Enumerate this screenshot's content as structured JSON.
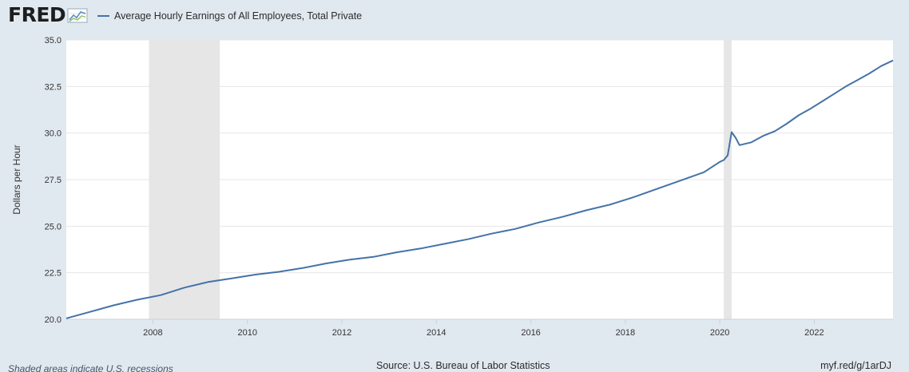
{
  "header": {
    "logo_text": "FRED",
    "legend_label": "Average Hourly Earnings of All Employees, Total Private"
  },
  "footer": {
    "note": "Shaded areas indicate U.S. recessions",
    "source": "Source: U.S. Bureau of Labor Statistics",
    "link": "myf.red/g/1arDJ"
  },
  "colors": {
    "line": "#4572a7",
    "recession": "#e6e6e6",
    "plot_background": "#ffffff",
    "page_background": "#e1e9f0"
  },
  "chart_data": {
    "type": "line",
    "title": "",
    "xlabel": "",
    "ylabel": "Dollars per Hour",
    "xlim": [
      "2006-03",
      "2023-09"
    ],
    "ylim": [
      20.0,
      35.0
    ],
    "grid": true,
    "legend_position": "top-left",
    "y_ticks": [
      "20.0",
      "22.5",
      "25.0",
      "27.5",
      "30.0",
      "32.5",
      "35.0"
    ],
    "x_ticks": [
      "2008",
      "2010",
      "2012",
      "2014",
      "2016",
      "2018",
      "2020",
      "2022"
    ],
    "recessions": [
      {
        "start": "2007-12",
        "end": "2009-06"
      },
      {
        "start": "2020-02",
        "end": "2020-04"
      }
    ],
    "series": [
      {
        "name": "Average Hourly Earnings of All Employees, Total Private",
        "x": [
          "2006-03",
          "2006-09",
          "2007-03",
          "2007-09",
          "2008-03",
          "2008-09",
          "2009-03",
          "2009-09",
          "2010-03",
          "2010-09",
          "2011-03",
          "2011-09",
          "2012-03",
          "2012-09",
          "2013-03",
          "2013-09",
          "2014-03",
          "2014-09",
          "2015-03",
          "2015-09",
          "2016-03",
          "2016-09",
          "2017-03",
          "2017-09",
          "2018-03",
          "2018-09",
          "2019-03",
          "2019-09",
          "2020-01",
          "2020-02",
          "2020-03",
          "2020-04",
          "2020-05",
          "2020-06",
          "2020-09",
          "2020-12",
          "2021-03",
          "2021-06",
          "2021-09",
          "2021-12",
          "2022-03",
          "2022-06",
          "2022-09",
          "2022-12",
          "2023-03",
          "2023-06",
          "2023-09"
        ],
        "values": [
          20.05,
          20.4,
          20.75,
          21.05,
          21.3,
          21.7,
          22.0,
          22.2,
          22.4,
          22.55,
          22.75,
          23.0,
          23.2,
          23.35,
          23.6,
          23.8,
          24.05,
          24.3,
          24.6,
          24.85,
          25.2,
          25.5,
          25.85,
          26.15,
          26.55,
          27.0,
          27.45,
          27.9,
          28.45,
          28.55,
          28.8,
          30.05,
          29.75,
          29.35,
          29.5,
          29.85,
          30.1,
          30.5,
          30.95,
          31.3,
          31.7,
          32.1,
          32.5,
          32.85,
          33.2,
          33.6,
          33.9
        ]
      }
    ]
  }
}
